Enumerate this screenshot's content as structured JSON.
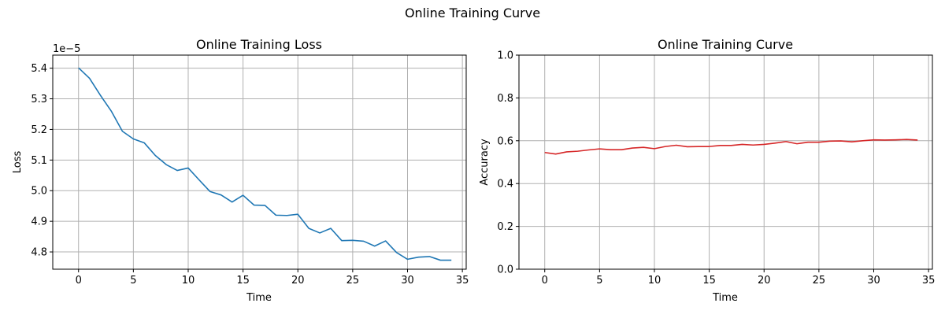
{
  "figure": {
    "suptitle": "Online Training Curve"
  },
  "colors": {
    "loss_line": "#1f77b4",
    "accuracy_line": "#d62728",
    "grid": "#b0b0b0"
  },
  "chart_data": [
    {
      "type": "line",
      "title": "Online Training Loss",
      "xlabel": "Time",
      "ylabel": "Loss",
      "offset_text": "1e−5",
      "xlim": [
        -2.35,
        35.35
      ],
      "ylim": [
        4.7436,
        5.4427
      ],
      "xticks": [
        0,
        5,
        10,
        15,
        20,
        25,
        30,
        35
      ],
      "yticks": [
        4.8,
        4.9,
        5.0,
        5.1,
        5.2,
        5.3,
        5.4
      ],
      "ytick_labels": [
        "4.8",
        "4.9",
        "5.0",
        "5.1",
        "5.2",
        "5.3",
        "5.4"
      ],
      "grid": true,
      "series": [
        {
          "x": [
            0,
            1,
            2,
            3,
            4,
            5,
            6,
            7,
            8,
            9,
            10,
            11,
            12,
            13,
            14,
            15,
            16,
            17,
            18,
            19,
            20,
            21,
            22,
            23,
            24,
            25,
            26,
            27,
            28,
            29,
            30,
            31,
            32,
            33,
            34
          ],
          "values": [
            5.401,
            5.367,
            5.311,
            5.259,
            5.194,
            5.169,
            5.156,
            5.115,
            5.085,
            5.066,
            5.074,
            5.035,
            4.997,
            4.986,
            4.963,
            4.985,
            4.953,
            4.952,
            4.92,
            4.919,
            4.923,
            4.877,
            4.862,
            4.877,
            4.837,
            4.838,
            4.835,
            4.819,
            4.836,
            4.798,
            4.776,
            4.783,
            4.785,
            4.773,
            4.773
          ]
        }
      ]
    },
    {
      "type": "line",
      "title": "Online Training Curve",
      "xlabel": "Time",
      "ylabel": "Accuracy",
      "xlim": [
        -2.35,
        35.35
      ],
      "ylim": [
        0.0,
        1.0
      ],
      "xticks": [
        0,
        5,
        10,
        15,
        20,
        25,
        30,
        35
      ],
      "yticks": [
        0.0,
        0.2,
        0.4,
        0.6,
        0.8,
        1.0
      ],
      "ytick_labels": [
        "0.0",
        "0.2",
        "0.4",
        "0.6",
        "0.8",
        "1.0"
      ],
      "grid": true,
      "series": [
        {
          "x": [
            0,
            1,
            2,
            3,
            4,
            5,
            6,
            7,
            8,
            9,
            10,
            11,
            12,
            13,
            14,
            15,
            16,
            17,
            18,
            19,
            20,
            21,
            22,
            23,
            24,
            25,
            26,
            27,
            28,
            29,
            30,
            31,
            32,
            33,
            34
          ],
          "values": [
            0.545,
            0.538,
            0.548,
            0.551,
            0.557,
            0.562,
            0.558,
            0.558,
            0.566,
            0.569,
            0.563,
            0.573,
            0.579,
            0.572,
            0.573,
            0.573,
            0.578,
            0.578,
            0.583,
            0.58,
            0.583,
            0.589,
            0.596,
            0.586,
            0.593,
            0.593,
            0.598,
            0.599,
            0.595,
            0.6,
            0.604,
            0.603,
            0.604,
            0.606,
            0.603
          ]
        }
      ]
    }
  ]
}
